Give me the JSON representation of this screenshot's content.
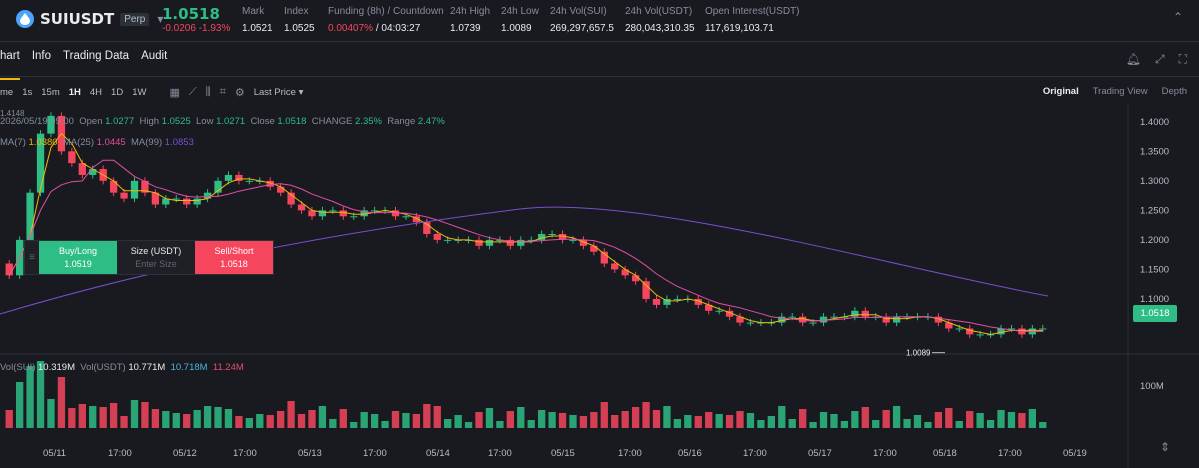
{
  "ticker": {
    "symbol": "SUIUSDT",
    "tag": "Perp",
    "last_price": "1.0518",
    "change": "-0.0206 -1.93%",
    "stats": [
      {
        "label": "Mark",
        "value": "1.0521"
      },
      {
        "label": "Index",
        "value": "1.0525"
      },
      {
        "label": "Funding (8h) / Countdown",
        "value_red": "0.00407%",
        "value": " / 04:03:27"
      },
      {
        "label": "24h High",
        "value": "1.0739"
      },
      {
        "label": "24h Low",
        "value": "1.0089"
      },
      {
        "label": "24h Vol(SUI)",
        "value": "269,297,657.5"
      },
      {
        "label": "24h Vol(USDT)",
        "value": "280,043,310.35"
      },
      {
        "label": "Open Interest(USDT)",
        "value": "117,619,103.71"
      }
    ]
  },
  "tabs": [
    "hart",
    "Info",
    "Trading Data",
    "Audit"
  ],
  "toolbar": {
    "time_label": "me",
    "intervals": [
      "1s",
      "15m",
      "1H",
      "4H",
      "1D",
      "1W"
    ],
    "active_interval": "1H",
    "price_type": "Last Price"
  },
  "views": [
    "Original",
    "Trading View",
    "Depth"
  ],
  "ohlc": {
    "date": "2026/05/19 09:00",
    "open_label": "Open",
    "open": "1.0277",
    "high_label": "High",
    "high": "1.0525",
    "low_label": "Low",
    "low": "1.0271",
    "close_label": "Close",
    "close": "1.0518",
    "change_label": "CHANGE",
    "change": "2.35%",
    "range_label": "Range",
    "range": "2.47%"
  },
  "ma": {
    "ma7_label": "MA(7)",
    "ma7": "1.0380",
    "ma25_label": "MA(25)",
    "ma25": "1.0445",
    "ma99_label": "MA(99)",
    "ma99": "1.0853"
  },
  "volume": {
    "label1": "Vol(SUI)",
    "value1": "10.319M",
    "label2": "Vol(USDT)",
    "value2": "10.771M",
    "ma1": "10.718M",
    "ma2": "11.24M"
  },
  "order_bar": {
    "buy_label": "Buy/Long",
    "buy_price": "1.0519",
    "size_label": "Size (USDT)",
    "size_placeholder": "Enter Size",
    "sell_label": "Sell/Short",
    "sell_price": "1.0518"
  },
  "current_price_tag": "1.0518",
  "low_marker": "1.0089",
  "high_marker": "1.4148",
  "colors": {
    "up": "#2ebd85",
    "down": "#f6465d",
    "ma7": "#f0b90b",
    "ma25": "#e44ea6",
    "ma99": "#7a4fd0"
  },
  "chart_data": {
    "type": "candlestick",
    "price_ticks": [
      "1.4000",
      "1.3500",
      "1.3000",
      "1.2500",
      "1.2000",
      "1.1500",
      "1.1000"
    ],
    "volume_tick": "100M",
    "x_ticks": [
      "05/11",
      "17:00",
      "05/12",
      "17:00",
      "05/13",
      "17:00",
      "05/14",
      "17:00",
      "05/15",
      "17:00",
      "05/16",
      "17:00",
      "05/17",
      "17:00",
      "05/18",
      "17:00",
      "05/19"
    ],
    "ylim": [
      1.0,
      1.42
    ],
    "closes": [
      1.14,
      1.2,
      1.28,
      1.38,
      1.41,
      1.35,
      1.33,
      1.31,
      1.32,
      1.3,
      1.28,
      1.27,
      1.3,
      1.28,
      1.26,
      1.27,
      1.27,
      1.26,
      1.27,
      1.28,
      1.3,
      1.31,
      1.3,
      1.3,
      1.3,
      1.29,
      1.28,
      1.26,
      1.25,
      1.24,
      1.25,
      1.25,
      1.24,
      1.24,
      1.25,
      1.25,
      1.25,
      1.24,
      1.24,
      1.23,
      1.21,
      1.2,
      1.2,
      1.2,
      1.2,
      1.19,
      1.2,
      1.2,
      1.19,
      1.2,
      1.2,
      1.21,
      1.21,
      1.2,
      1.2,
      1.19,
      1.18,
      1.16,
      1.15,
      1.14,
      1.13,
      1.1,
      1.09,
      1.1,
      1.1,
      1.1,
      1.09,
      1.08,
      1.08,
      1.07,
      1.06,
      1.06,
      1.06,
      1.06,
      1.07,
      1.07,
      1.06,
      1.06,
      1.07,
      1.07,
      1.07,
      1.08,
      1.07,
      1.07,
      1.06,
      1.07,
      1.07,
      1.07,
      1.07,
      1.06,
      1.05,
      1.05,
      1.04,
      1.04,
      1.04,
      1.05,
      1.05,
      1.04,
      1.05,
      1.05
    ]
  }
}
